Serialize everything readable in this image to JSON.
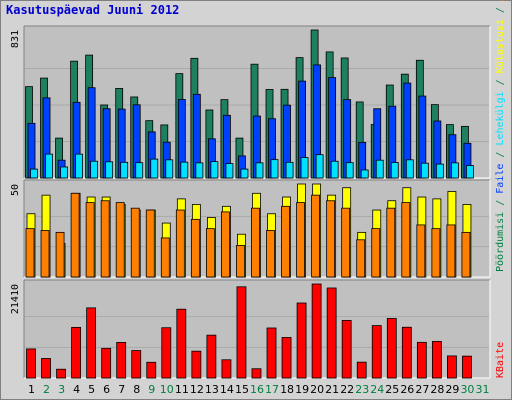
{
  "title": "Kasutuspäevad Juuni 2012",
  "chart_data": {
    "type": "bar",
    "categories": [
      "1",
      "2",
      "3",
      "4",
      "5",
      "6",
      "7",
      "8",
      "9",
      "10",
      "11",
      "12",
      "13",
      "14",
      "15",
      "16",
      "17",
      "18",
      "19",
      "20",
      "21",
      "22",
      "23",
      "24",
      "25",
      "26",
      "27",
      "28",
      "29",
      "30",
      "31"
    ],
    "weekend_days": [
      "2",
      "3",
      "9",
      "10",
      "16",
      "17",
      "23",
      "24",
      "30",
      "31"
    ],
    "panels": [
      {
        "ylim": [
          0,
          831
        ],
        "ytick": "831",
        "series": [
          {
            "name": "Külastusi",
            "color": "#1e8060",
            "values": [
              513,
              561,
              224,
              656,
              690,
              410,
              503,
              455,
              322,
              298,
              586,
              672,
              382,
              440,
              224,
              639,
              497,
              498,
              676,
              831,
              708,
              674,
              427,
              300,
              522,
              583,
              661,
              412,
              300,
              290,
              null
            ]
          },
          {
            "name": "Pöördumisi",
            "color": "#1e8060",
            "values": [
              null,
              null,
              null,
              null,
              null,
              null,
              null,
              null,
              null,
              null,
              null,
              null,
              null,
              null,
              null,
              null,
              null,
              null,
              null,
              null,
              null,
              null,
              null,
              null,
              null,
              null,
              null,
              null,
              null,
              null,
              null
            ]
          },
          {
            "name": "Faile",
            "color": "#0040ff",
            "values": [
              307,
              450,
              100,
              425,
              507,
              389,
              387,
              411,
              259,
              201,
              441,
              470,
              220,
              352,
              124,
              348,
              333,
              409,
              544,
              635,
              564,
              440,
              200,
              389,
              403,
              533,
              460,
              320,
              243,
              195,
              null
            ]
          },
          {
            "name": "Lehekülgi",
            "color": "#00e0ff",
            "values": [
              50,
              134,
              62,
              134,
              94,
              91,
              88,
              86,
              106,
              102,
              89,
              85,
              92,
              81,
              50,
              85,
              103,
              88,
              115,
              131,
              94,
              86,
              45,
              100,
              87,
              102,
              83,
              78,
              85,
              70,
              null
            ]
          }
        ]
      },
      {
        "ylim": [
          0,
          50
        ],
        "ytick": "50",
        "series": [
          {
            "name": "Külastusi",
            "color": "#ffff00",
            "values": [
              34,
              44,
              18,
              45,
              43,
              43,
              39,
              36,
              36,
              29,
              42,
              39,
              32,
              38,
              23,
              45,
              34,
              43,
              50,
              50,
              44,
              48,
              24,
              36,
              41,
              48,
              43,
              42,
              46,
              39,
              null
            ]
          },
          {
            "name": "Aruanded",
            "color": "#ff8000",
            "values": [
              26,
              25,
              24,
              45,
              40,
              41,
              40,
              37,
              36,
              21,
              36,
              31,
              26,
              35,
              17,
              37,
              25,
              38,
              40,
              44,
              41,
              37,
              20,
              26,
              37,
              40,
              28,
              26,
              28,
              24,
              null
            ]
          }
        ]
      },
      {
        "ylim": [
          0,
          21410
        ],
        "ytick": "21410",
        "series": [
          {
            "name": "KBaite",
            "color": "#ff0000",
            "values": [
              6620,
              4450,
              2000,
              11530,
              15970,
              6760,
              8110,
              6250,
              3580,
              11450,
              15670,
              6110,
              9760,
              4150,
              20770,
              2110,
              11390,
              9230,
              17080,
              21410,
              20500,
              13110,
              3610,
              11940,
              13560,
              11560,
              8130,
              8340,
              5030,
              4980,
              null
            ]
          }
        ]
      }
    ],
    "right_labels": {
      "top": [
        {
          "text": "Pöördumisi",
          "color": "#008040"
        },
        {
          "text": " / ",
          "color": "#008040"
        },
        {
          "text": "Faile",
          "color": "#0040ff"
        },
        {
          "text": " / ",
          "color": "#008040"
        },
        {
          "text": "Lehekülgi",
          "color": "#00e0ff"
        },
        {
          "text": " / ",
          "color": "#008040"
        },
        {
          "text": "Külastusi",
          "color": "#ffff00"
        },
        {
          "text": " / ",
          "color": "#008040"
        },
        {
          "text": "Aruanded",
          "color": "#ff8000"
        }
      ],
      "bottom": [
        {
          "text": "KBaite",
          "color": "#ff0000"
        }
      ]
    }
  }
}
